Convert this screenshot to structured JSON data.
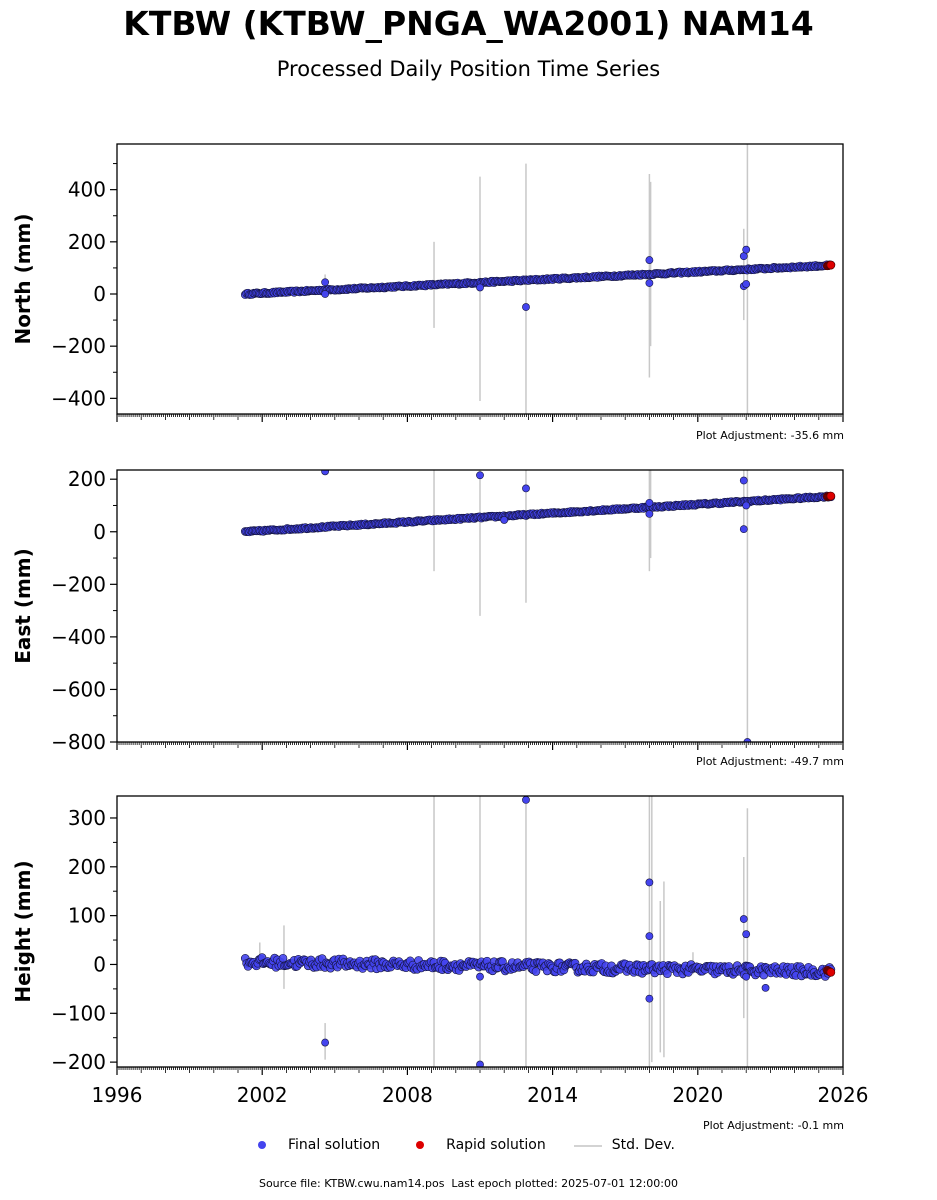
{
  "title": "KTBW (KTBW_PNGA_WA2001) NAM14",
  "subtitle": "Processed Daily Position Time Series",
  "footer": {
    "source_file": "Source file: KTBW.cwu.nam14.pos",
    "last_epoch": "Last epoch plotted: 2025-07-01 12:00:00"
  },
  "legend": [
    {
      "label": "Final solution",
      "color": "#4444ee"
    },
    {
      "label": "Rapid solution",
      "color": "#dd0000"
    },
    {
      "label": "Std. Dev.",
      "color": "#d3d3d3"
    }
  ],
  "colors": {
    "final": "#4444ee",
    "rapid": "#dd0000",
    "stddev": "#c8c8c8",
    "edge": "#14143c"
  },
  "chart_data": [
    {
      "type": "scatter",
      "ylabel": "North (mm)",
      "xlim": [
        1996,
        2026
      ],
      "ylim": [
        -460,
        575
      ],
      "yticks": [
        -400,
        -200,
        0,
        200,
        400
      ],
      "ytick_labels": [
        "−400",
        "−200",
        "0",
        "200",
        "400"
      ],
      "plot_adjustment": "Plot Adjustment: -35.6 mm",
      "trend": {
        "x": [
          2001.3,
          2025.5
        ],
        "y": [
          0,
          110
        ],
        "noise": 3
      },
      "rapid": {
        "x": [
          2025.35,
          2025.5
        ],
        "y": [
          108,
          111
        ]
      },
      "outliers": [
        {
          "x": 2004.6,
          "y": 45
        },
        {
          "x": 2004.6,
          "y": 0
        },
        {
          "x": 2011.0,
          "y": 25
        },
        {
          "x": 2012.9,
          "y": -50
        },
        {
          "x": 2018.0,
          "y": 130
        },
        {
          "x": 2018.0,
          "y": 42
        },
        {
          "x": 2021.9,
          "y": 145
        },
        {
          "x": 2022.0,
          "y": 170
        },
        {
          "x": 2021.9,
          "y": 30
        },
        {
          "x": 2022.0,
          "y": 38
        }
      ],
      "errorbars": [
        {
          "x": 2004.6,
          "y0": -10,
          "y1": 75
        },
        {
          "x": 2009.1,
          "y0": -130,
          "y1": 200
        },
        {
          "x": 2011.0,
          "y0": -410,
          "y1": 450
        },
        {
          "x": 2012.9,
          "y0": -460,
          "y1": 500
        },
        {
          "x": 2018.0,
          "y0": -320,
          "y1": 460
        },
        {
          "x": 2018.05,
          "y0": -200,
          "y1": 430
        },
        {
          "x": 2021.9,
          "y0": -100,
          "y1": 250
        },
        {
          "x": 2022.05,
          "y0": -460,
          "y1": 575
        }
      ]
    },
    {
      "type": "scatter",
      "ylabel": "East (mm)",
      "xlim": [
        1996,
        2026
      ],
      "ylim": [
        -800,
        235
      ],
      "yticks": [
        -800,
        -600,
        -400,
        -200,
        0,
        200
      ],
      "ytick_labels": [
        "−800",
        "−600",
        "−400",
        "−200",
        "0",
        "200"
      ],
      "plot_adjustment": "Plot Adjustment: -49.7 mm",
      "trend": {
        "x": [
          2001.3,
          2025.5
        ],
        "y": [
          0,
          135
        ],
        "noise": 3
      },
      "rapid": {
        "x": [
          2025.35,
          2025.5
        ],
        "y": [
          134,
          136
        ]
      },
      "outliers": [
        {
          "x": 2004.6,
          "y": 230
        },
        {
          "x": 2011.0,
          "y": 215
        },
        {
          "x": 2012.0,
          "y": 45
        },
        {
          "x": 2012.9,
          "y": 165
        },
        {
          "x": 2018.0,
          "y": 110
        },
        {
          "x": 2018.0,
          "y": 68
        },
        {
          "x": 2021.9,
          "y": 195
        },
        {
          "x": 2022.0,
          "y": 100
        },
        {
          "x": 2021.9,
          "y": 10
        },
        {
          "x": 2022.05,
          "y": -800
        }
      ],
      "errorbars": [
        {
          "x": 2009.1,
          "y0": -150,
          "y1": 235
        },
        {
          "x": 2011.0,
          "y0": -320,
          "y1": 235
        },
        {
          "x": 2012.9,
          "y0": -270,
          "y1": 235
        },
        {
          "x": 2018.0,
          "y0": -150,
          "y1": 235
        },
        {
          "x": 2018.05,
          "y0": -100,
          "y1": 235
        },
        {
          "x": 2021.9,
          "y0": 0,
          "y1": 235
        },
        {
          "x": 2022.05,
          "y0": -800,
          "y1": 235
        }
      ]
    },
    {
      "type": "scatter",
      "ylabel": "Height (mm)",
      "xlim": [
        1996,
        2026
      ],
      "ylim": [
        -210,
        345
      ],
      "yticks": [
        -200,
        -100,
        0,
        100,
        200,
        300
      ],
      "ytick_labels": [
        "−200",
        "−100",
        "0",
        "100",
        "200",
        "300"
      ],
      "xticks": [
        1996,
        2002,
        2008,
        2014,
        2020,
        2026
      ],
      "plot_adjustment": "Plot Adjustment: -0.1 mm",
      "trend": {
        "x": [
          2001.3,
          2025.5
        ],
        "y": [
          5,
          -15
        ],
        "noise": 10
      },
      "rapid": {
        "x": [
          2025.35,
          2025.5
        ],
        "y": [
          -12,
          -16
        ]
      },
      "outliers": [
        {
          "x": 2004.6,
          "y": -160
        },
        {
          "x": 2011.0,
          "y": -25
        },
        {
          "x": 2011.0,
          "y": -205
        },
        {
          "x": 2012.9,
          "y": 337
        },
        {
          "x": 2018.0,
          "y": 168
        },
        {
          "x": 2018.0,
          "y": 58
        },
        {
          "x": 2018.0,
          "y": -70
        },
        {
          "x": 2021.9,
          "y": 93
        },
        {
          "x": 2022.0,
          "y": 62
        },
        {
          "x": 2022.0,
          "y": -25
        },
        {
          "x": 2022.8,
          "y": -48
        }
      ],
      "errorbars": [
        {
          "x": 2001.9,
          "y0": -10,
          "y1": 45
        },
        {
          "x": 2002.9,
          "y0": -50,
          "y1": 80
        },
        {
          "x": 2004.6,
          "y0": -195,
          "y1": -120
        },
        {
          "x": 2009.1,
          "y0": -210,
          "y1": 345
        },
        {
          "x": 2011.0,
          "y0": -210,
          "y1": 345
        },
        {
          "x": 2012.9,
          "y0": -210,
          "y1": 345
        },
        {
          "x": 2018.0,
          "y0": -210,
          "y1": 345
        },
        {
          "x": 2018.1,
          "y0": -200,
          "y1": 345
        },
        {
          "x": 2018.45,
          "y0": -180,
          "y1": 130
        },
        {
          "x": 2018.6,
          "y0": -190,
          "y1": 170
        },
        {
          "x": 2019.8,
          "y0": -20,
          "y1": 25
        },
        {
          "x": 2021.9,
          "y0": -110,
          "y1": 220
        },
        {
          "x": 2022.05,
          "y0": -210,
          "y1": 320
        }
      ]
    }
  ]
}
